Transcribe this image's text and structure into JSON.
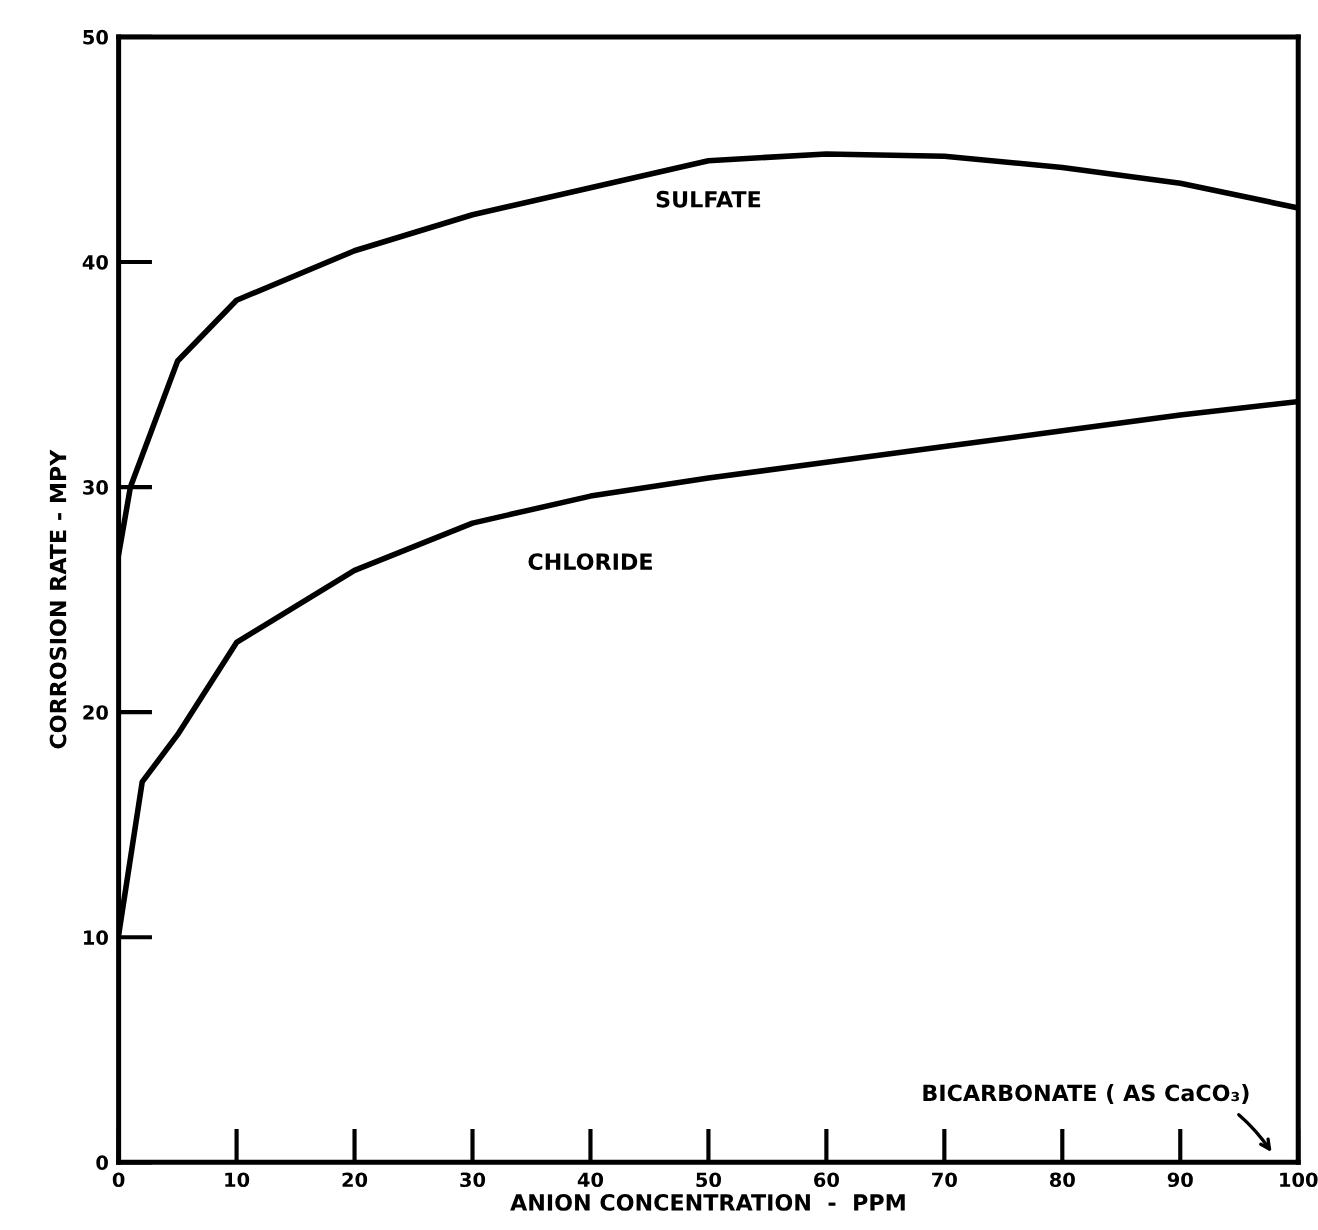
{
  "chart_data": {
    "type": "line",
    "xlabel": "ANION CONCENTRATION  -  PPM",
    "ylabel": "CORROSION RATE - MPY",
    "xlim": [
      0,
      100
    ],
    "ylim": [
      0,
      50
    ],
    "xticks": [
      0,
      10,
      20,
      30,
      40,
      50,
      60,
      70,
      80,
      90,
      100
    ],
    "yticks": [
      0,
      10,
      20,
      30,
      40,
      50
    ],
    "grid": false,
    "legend": false,
    "marker": "none",
    "line_style": "solid",
    "series": [
      {
        "name": "SULFATE",
        "color": "#000000",
        "x": [
          0,
          1,
          5,
          10,
          20,
          30,
          40,
          50,
          60,
          70,
          80,
          90,
          100
        ],
        "values": [
          27,
          30,
          35.6,
          38.3,
          40.5,
          42.1,
          43.3,
          44.5,
          44.8,
          44.7,
          44.2,
          43.5,
          42.4
        ]
      },
      {
        "name": "CHLORIDE",
        "color": "#000000",
        "x": [
          0,
          2,
          5,
          10,
          20,
          30,
          40,
          50,
          60,
          70,
          80,
          90,
          100
        ],
        "values": [
          10.1,
          16.9,
          19,
          23.1,
          26.3,
          28.4,
          29.6,
          30.4,
          31.1,
          31.8,
          32.5,
          33.2,
          33.8
        ]
      }
    ],
    "annotations": [
      "BICARBONATE ( AS CaCO₃)"
    ]
  }
}
